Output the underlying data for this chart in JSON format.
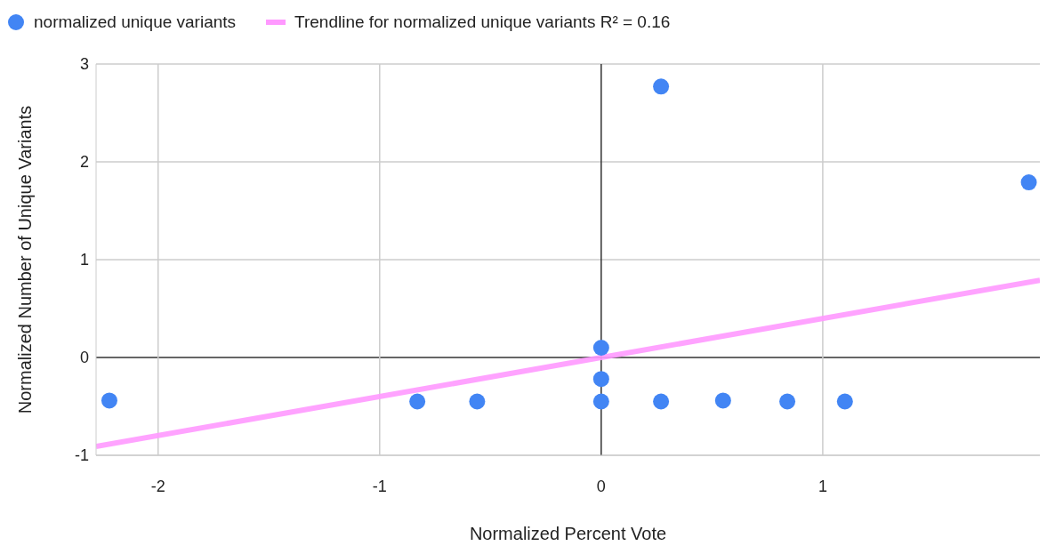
{
  "chart_data": {
    "type": "scatter",
    "xlabel": "Normalized Percent Vote",
    "ylabel": "Normalized Number of Unique Variants",
    "series": [
      {
        "name": "normalized unique variants",
        "color": "#4285f4",
        "marker": "circle",
        "x": [
          -2.22,
          -0.83,
          -0.56,
          0,
          0,
          0,
          0.27,
          0.27,
          0.55,
          0.84,
          1.1,
          1.93
        ],
        "values": [
          -0.44,
          -0.45,
          -0.45,
          0.1,
          -0.22,
          -0.45,
          -0.45,
          2.77,
          -0.44,
          -0.45,
          -0.45,
          1.79
        ]
      },
      {
        "name": "Trendline for normalized unique variants R² = 0.16",
        "type": "line",
        "color": "#ff99ff",
        "marker": "none",
        "line_style": "solid",
        "x": [
          -2.28,
          1.98
        ],
        "values": [
          -0.91,
          0.79
        ]
      }
    ],
    "xlim": [
      -2.28,
      1.98
    ],
    "ylim": [
      -1,
      3
    ],
    "xticks": [
      -2,
      -1,
      0,
      1
    ],
    "yticks": [
      -1,
      0,
      1,
      2,
      3
    ],
    "grid": true,
    "legend": "top left"
  }
}
